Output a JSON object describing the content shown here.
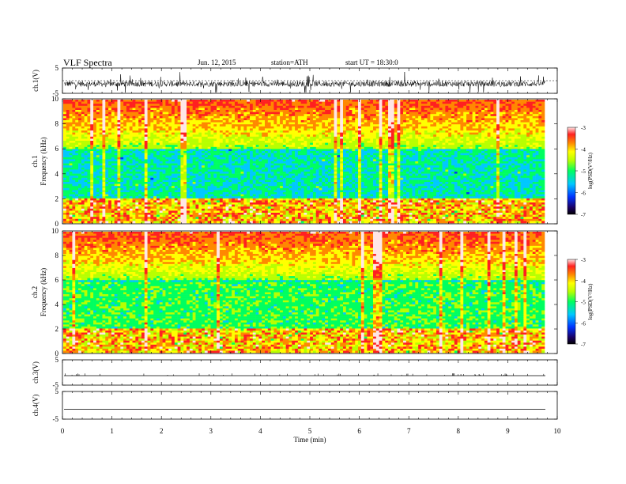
{
  "header": {
    "title": "VLF Spectra",
    "date": "Jun. 12, 2015",
    "station": "station=ATH",
    "start": "start UT =   18:30:0"
  },
  "chart_data": [
    {
      "type": "line",
      "title": "",
      "ylabel": "ch.1(V)",
      "ylim": [
        -5,
        5
      ],
      "yticks": [
        "5",
        "-5"
      ],
      "xlim": [
        0,
        10
      ],
      "series": [
        {
          "description_values": "noisy broadband signal around ~0 V, amplitude roughly ±3 V"
        }
      ]
    },
    {
      "type": "heatmap",
      "ylabel": "Frequency (kHz)",
      "channel_label": "ch.1",
      "ylim": [
        0,
        10
      ],
      "yticks": [
        "10",
        "8",
        "6",
        "4",
        "2",
        "0"
      ],
      "xlim": [
        0,
        9.8
      ],
      "colorbar": {
        "label": "log(PSD(V²/Hz)",
        "range": [
          -7,
          -3
        ],
        "ticks": [
          "-3",
          "-4",
          "-5",
          "-6",
          "-7"
        ]
      }
    },
    {
      "type": "heatmap",
      "ylabel": "Frequency (kHz)",
      "channel_label": "ch.2",
      "ylim": [
        0,
        10
      ],
      "yticks": [
        "10",
        "8",
        "6",
        "4",
        "2",
        "0"
      ],
      "xlim": [
        0,
        9.8
      ],
      "colorbar": {
        "label": "log(PSD(V²/Hz)",
        "range": [
          -7,
          -3
        ],
        "ticks": [
          "-3",
          "-4",
          "-5",
          "-6",
          "-7"
        ]
      }
    },
    {
      "type": "line",
      "ylabel": "ch.3(V)",
      "ylim": [
        -5,
        5
      ],
      "yticks": [
        "5",
        "-5"
      ],
      "xlim": [
        0,
        10
      ],
      "series": [
        {
          "description_values": "flat near 0 V with small spikes"
        }
      ]
    },
    {
      "type": "line",
      "ylabel": "ch.4(V)",
      "ylim": [
        -5,
        5
      ],
      "yticks": [
        "5",
        "-5"
      ],
      "xlim": [
        0,
        10
      ],
      "series": [
        {
          "description_values": "flat near -1.5 V"
        }
      ]
    }
  ],
  "xaxis": {
    "label": "Time (min)",
    "ticks": [
      "0",
      "1",
      "2",
      "3",
      "4",
      "5",
      "6",
      "7",
      "8",
      "9",
      "10"
    ]
  }
}
